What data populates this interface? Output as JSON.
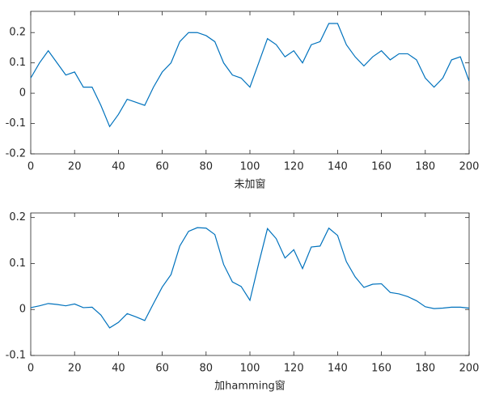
{
  "chart_data": [
    {
      "type": "line",
      "xlabel": "未加窗",
      "color": "#0072bd",
      "x": [
        0,
        4,
        8,
        12,
        16,
        20,
        24,
        28,
        32,
        36,
        40,
        44,
        48,
        52,
        56,
        60,
        64,
        68,
        72,
        76,
        80,
        84,
        88,
        92,
        96,
        100,
        104,
        108,
        112,
        116,
        120,
        124,
        128,
        132,
        136,
        140,
        144,
        148,
        152,
        156,
        160,
        164,
        168,
        172,
        176,
        180,
        184,
        188,
        192,
        196,
        200
      ],
      "values": [
        0.05,
        0.1,
        0.14,
        0.1,
        0.06,
        0.07,
        0.02,
        0.02,
        -0.04,
        -0.11,
        -0.07,
        -0.02,
        -0.03,
        -0.04,
        0.02,
        0.07,
        0.1,
        0.17,
        0.2,
        0.2,
        0.19,
        0.17,
        0.1,
        0.06,
        0.05,
        0.02,
        0.1,
        0.18,
        0.16,
        0.12,
        0.14,
        0.1,
        0.16,
        0.17,
        0.23,
        0.23,
        0.16,
        0.12,
        0.09,
        0.12,
        0.14,
        0.11,
        0.13,
        0.13,
        0.11,
        0.05,
        0.02,
        0.05,
        0.11,
        0.12,
        0.04
      ],
      "xlim": [
        0,
        200
      ],
      "xticks": [
        0,
        20,
        40,
        60,
        80,
        100,
        120,
        140,
        160,
        180,
        200
      ],
      "ylim": [
        -0.2,
        0.27
      ],
      "yticks": [
        -0.2,
        -0.1,
        0,
        0.1,
        0.2
      ]
    },
    {
      "type": "line",
      "xlabel": "加hamming窗",
      "color": "#0072bd",
      "x": [
        0,
        4,
        8,
        12,
        16,
        20,
        24,
        28,
        32,
        36,
        40,
        44,
        48,
        52,
        56,
        60,
        64,
        68,
        72,
        76,
        80,
        84,
        88,
        92,
        96,
        100,
        104,
        108,
        112,
        116,
        120,
        124,
        128,
        132,
        136,
        140,
        144,
        148,
        152,
        156,
        160,
        164,
        168,
        172,
        176,
        180,
        184,
        188,
        192,
        196,
        200
      ],
      "values": [
        0.004,
        0.008,
        0.013,
        0.011,
        0.008,
        0.012,
        0.004,
        0.005,
        -0.012,
        -0.04,
        -0.028,
        -0.009,
        -0.016,
        -0.024,
        0.013,
        0.049,
        0.076,
        0.138,
        0.17,
        0.178,
        0.177,
        0.163,
        0.098,
        0.06,
        0.05,
        0.02,
        0.1,
        0.176,
        0.154,
        0.112,
        0.13,
        0.089,
        0.136,
        0.138,
        0.177,
        0.161,
        0.104,
        0.071,
        0.048,
        0.055,
        0.056,
        0.037,
        0.034,
        0.028,
        0.019,
        0.006,
        0.002,
        0.003,
        0.005,
        0.005,
        0.003
      ],
      "xlim": [
        0,
        200
      ],
      "xticks": [
        0,
        20,
        40,
        60,
        80,
        100,
        120,
        140,
        160,
        180,
        200
      ],
      "ylim": [
        -0.1,
        0.21
      ],
      "yticks": [
        -0.1,
        0,
        0.1,
        0.2
      ]
    }
  ]
}
